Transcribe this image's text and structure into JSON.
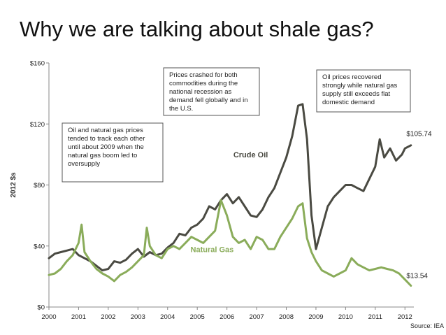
{
  "slide": {
    "title": "Why we are talking about shale gas?",
    "source": "Source: IEA"
  },
  "colors": {
    "crude_oil": "#4a4a42",
    "natural_gas": "#8aac5a",
    "axis": "#888888"
  },
  "chart_data": {
    "type": "line",
    "title": "",
    "xlabel": "",
    "ylabel": "2012 $s",
    "xlim": [
      2000,
      2012.3
    ],
    "ylim": [
      0,
      160
    ],
    "x_ticks": [
      "2000",
      "2001",
      "2002",
      "2003",
      "2004",
      "2005",
      "2006",
      "2007",
      "2008",
      "2009",
      "2010",
      "2011",
      "2012"
    ],
    "y_ticks": [
      "$0",
      "$40",
      "$80",
      "$120",
      "$160"
    ],
    "y_tick_values": [
      0,
      40,
      80,
      120,
      160
    ],
    "series": [
      {
        "name": "Crude Oil",
        "label": "Crude Oil",
        "end_label": "$105.74",
        "x": [
          2000,
          2000.2,
          2000.4,
          2000.6,
          2000.8,
          2001,
          2001.2,
          2001.4,
          2001.6,
          2001.8,
          2002,
          2002.2,
          2002.4,
          2002.6,
          2002.8,
          2003,
          2003.2,
          2003.4,
          2003.6,
          2003.8,
          2004,
          2004.2,
          2004.4,
          2004.6,
          2004.8,
          2005,
          2005.2,
          2005.4,
          2005.6,
          2005.8,
          2006,
          2006.2,
          2006.4,
          2006.6,
          2006.8,
          2007,
          2007.2,
          2007.4,
          2007.6,
          2007.8,
          2008,
          2008.2,
          2008.4,
          2008.55,
          2008.7,
          2008.85,
          2009,
          2009.2,
          2009.4,
          2009.6,
          2009.8,
          2010,
          2010.2,
          2010.4,
          2010.6,
          2010.8,
          2011,
          2011.15,
          2011.3,
          2011.5,
          2011.7,
          2011.9,
          2012,
          2012.2
        ],
        "values": [
          32,
          35,
          36,
          37,
          38,
          34,
          32,
          30,
          27,
          24,
          25,
          30,
          29,
          31,
          35,
          38,
          33,
          36,
          34,
          35,
          39,
          42,
          48,
          47,
          52,
          54,
          58,
          66,
          64,
          70,
          74,
          68,
          72,
          66,
          60,
          59,
          64,
          72,
          78,
          88,
          98,
          112,
          132,
          133,
          110,
          60,
          38,
          52,
          66,
          72,
          76,
          80,
          80,
          78,
          76,
          84,
          92,
          110,
          98,
          104,
          96,
          100,
          104,
          106
        ],
        "label_pos": [
          2006.8,
          98
        ],
        "end_label_pos": [
          2012.05,
          112
        ]
      },
      {
        "name": "Natural Gas",
        "label": "Natural Gas",
        "end_label": "$13.54",
        "x": [
          2000,
          2000.2,
          2000.4,
          2000.6,
          2000.8,
          2001,
          2001.1,
          2001.2,
          2001.4,
          2001.6,
          2001.8,
          2002,
          2002.2,
          2002.4,
          2002.6,
          2002.8,
          2003,
          2003.2,
          2003.3,
          2003.4,
          2003.6,
          2003.8,
          2004,
          2004.2,
          2004.4,
          2004.6,
          2004.8,
          2005,
          2005.2,
          2005.4,
          2005.6,
          2005.8,
          2006,
          2006.2,
          2006.4,
          2006.6,
          2006.8,
          2007,
          2007.2,
          2007.4,
          2007.6,
          2007.8,
          2008,
          2008.2,
          2008.4,
          2008.55,
          2008.7,
          2008.85,
          2009,
          2009.2,
          2009.4,
          2009.6,
          2009.8,
          2010,
          2010.2,
          2010.4,
          2010.6,
          2010.8,
          2011,
          2011.2,
          2011.4,
          2011.6,
          2011.8,
          2012,
          2012.2
        ],
        "values": [
          21,
          22,
          25,
          30,
          34,
          42,
          54,
          36,
          30,
          25,
          22,
          20,
          17,
          21,
          23,
          26,
          30,
          34,
          52,
          40,
          34,
          32,
          38,
          40,
          38,
          42,
          46,
          44,
          42,
          46,
          50,
          70,
          60,
          46,
          42,
          44,
          38,
          46,
          44,
          38,
          38,
          46,
          52,
          58,
          66,
          68,
          45,
          36,
          30,
          24,
          22,
          20,
          22,
          24,
          32,
          28,
          26,
          24,
          25,
          26,
          25,
          24,
          22,
          18,
          14
        ],
        "label_pos": [
          2005.5,
          36
        ],
        "end_label_pos": [
          2012.05,
          19
        ]
      }
    ],
    "annotations": [
      {
        "lines": [
          "Oil and natural gas prices",
          "tended to track each other",
          "until about 2009 when the",
          "natural gas boom led to",
          "oversupply"
        ]
      },
      {
        "lines": [
          "Prices crashed for both",
          "commodities during the",
          "national recession as",
          "demand fell globally and in",
          "the U.S."
        ]
      },
      {
        "lines": [
          "Oil prices recovered",
          "strongly while natural gas",
          "supply still exceeds flat",
          "domestic demand"
        ]
      }
    ]
  }
}
